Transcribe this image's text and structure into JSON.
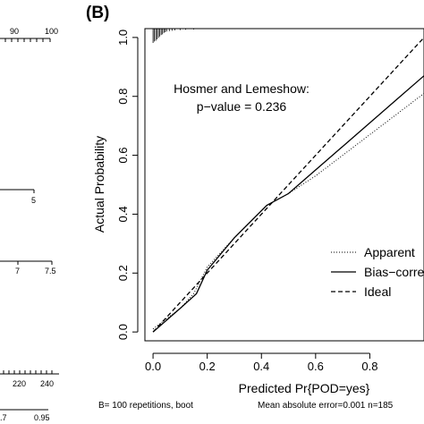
{
  "panel_label": "(B)",
  "left_fragment": {
    "axis1_labels": [
      "90",
      "100"
    ],
    "axis2_labels": [
      "5"
    ],
    "axis3_labels": [
      "7",
      "7.5"
    ],
    "axis4_labels": [
      "220",
      "240"
    ],
    "axis5_labels": [
      ".7",
      "0.95"
    ]
  },
  "chart_data": {
    "type": "line",
    "xlabel": "Predicted Pr{POD=yes}",
    "ylabel": "Actual Probability",
    "xlim": [
      -0.03,
      1.0
    ],
    "ylim": [
      -0.03,
      1.03
    ],
    "x_ticks": [
      0.0,
      0.2,
      0.4,
      0.6,
      0.8
    ],
    "x_tick_labels": [
      "0.0",
      "0.2",
      "0.4",
      "0.6",
      "0.8"
    ],
    "y_ticks": [
      0.0,
      0.2,
      0.4,
      0.6,
      0.8,
      1.0
    ],
    "y_tick_labels": [
      "0.0",
      "0.2",
      "0.4",
      "0.6",
      "0.8",
      "1.0"
    ],
    "annotation": [
      "Hosmer and Lemeshow:",
      "p−value = 0.236"
    ],
    "series": [
      {
        "name": "Apparent",
        "style": "dotted",
        "x": [
          0.0,
          0.1,
          0.15,
          0.2,
          0.3,
          0.42,
          0.5,
          0.6,
          0.7,
          0.8,
          0.9,
          1.0
        ],
        "y": [
          0.01,
          0.08,
          0.13,
          0.22,
          0.32,
          0.43,
          0.47,
          0.53,
          0.6,
          0.67,
          0.74,
          0.81
        ]
      },
      {
        "name": "Bias−corrected",
        "style": "solid",
        "x": [
          0.0,
          0.1,
          0.16,
          0.2,
          0.3,
          0.42,
          0.5,
          0.6,
          0.7,
          0.8,
          0.9,
          1.0
        ],
        "y": [
          0.0,
          0.08,
          0.13,
          0.21,
          0.32,
          0.43,
          0.47,
          0.55,
          0.63,
          0.71,
          0.79,
          0.87
        ]
      },
      {
        "name": "Ideal",
        "style": "dashed",
        "x": [
          0.0,
          1.0
        ],
        "y": [
          0.0,
          1.0
        ]
      }
    ],
    "legend_labels": [
      "Apparent",
      "Bias−corrected",
      "Ideal"
    ],
    "legend_position": "bottom-right",
    "footer": [
      "B= 100 repetitions, boot",
      "Mean absolute error=0.001 n=185"
    ],
    "rug_x": [
      0.0,
      0.005,
      0.01,
      0.015,
      0.02,
      0.025,
      0.03,
      0.035,
      0.04,
      0.045,
      0.05,
      0.06,
      0.07,
      0.08,
      0.1,
      0.12,
      0.15
    ],
    "rug_heights": [
      1.0,
      0.9,
      0.85,
      0.75,
      0.65,
      0.55,
      0.45,
      0.4,
      0.3,
      0.25,
      0.2,
      0.18,
      0.15,
      0.12,
      0.1,
      0.08,
      0.06
    ],
    "colors": {
      "line": "#000000",
      "grid": "none"
    }
  }
}
